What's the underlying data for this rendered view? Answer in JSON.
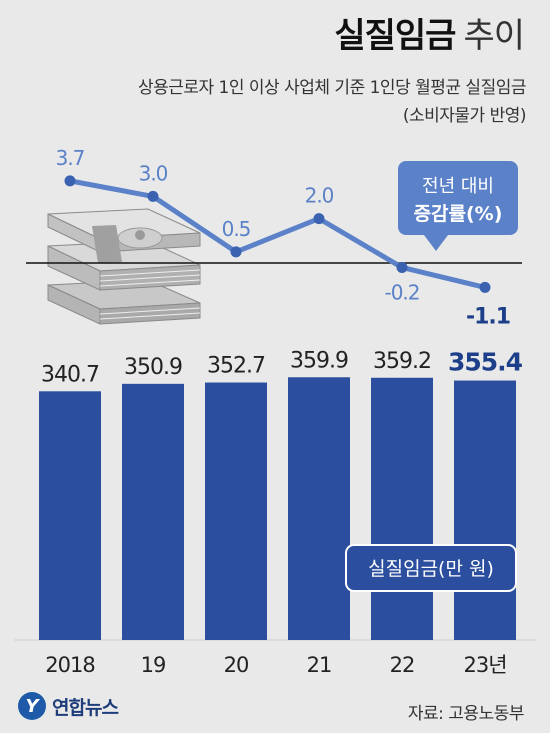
{
  "header": {
    "title_bold": "실질임금",
    "title_light": "추이",
    "subtitle_line1": "상용근로자 1인 이상 사업체 기준 1인당 월평균 실질임금",
    "subtitle_line2": "(소비자물가 반영)"
  },
  "footer": {
    "source": "자료: 고용노동부",
    "logo_mark": "Y",
    "logo_text": "연합뉴스"
  },
  "chart_data": [
    {
      "type": "bar",
      "categories": [
        "2018",
        "19",
        "20",
        "21",
        "22",
        "23년"
      ],
      "values": [
        340.7,
        350.9,
        352.7,
        359.9,
        359.2,
        355.4
      ],
      "legend": "실질임금(만 원)",
      "bar_color": "#2b4f9e",
      "highlight_last": true
    },
    {
      "type": "line",
      "categories": [
        "2018",
        "19",
        "20",
        "21",
        "22",
        "23년"
      ],
      "values": [
        3.7,
        3.0,
        0.5,
        2.0,
        -0.2,
        -1.1
      ],
      "value_labels": [
        "3.7",
        "3.0",
        "0.5",
        "2.0",
        "-0.2",
        "-1.1"
      ],
      "legend_line1": "전년 대비",
      "legend_line2": "증감률(%)",
      "line_color": "#5b82c8",
      "baseline": 0
    }
  ]
}
